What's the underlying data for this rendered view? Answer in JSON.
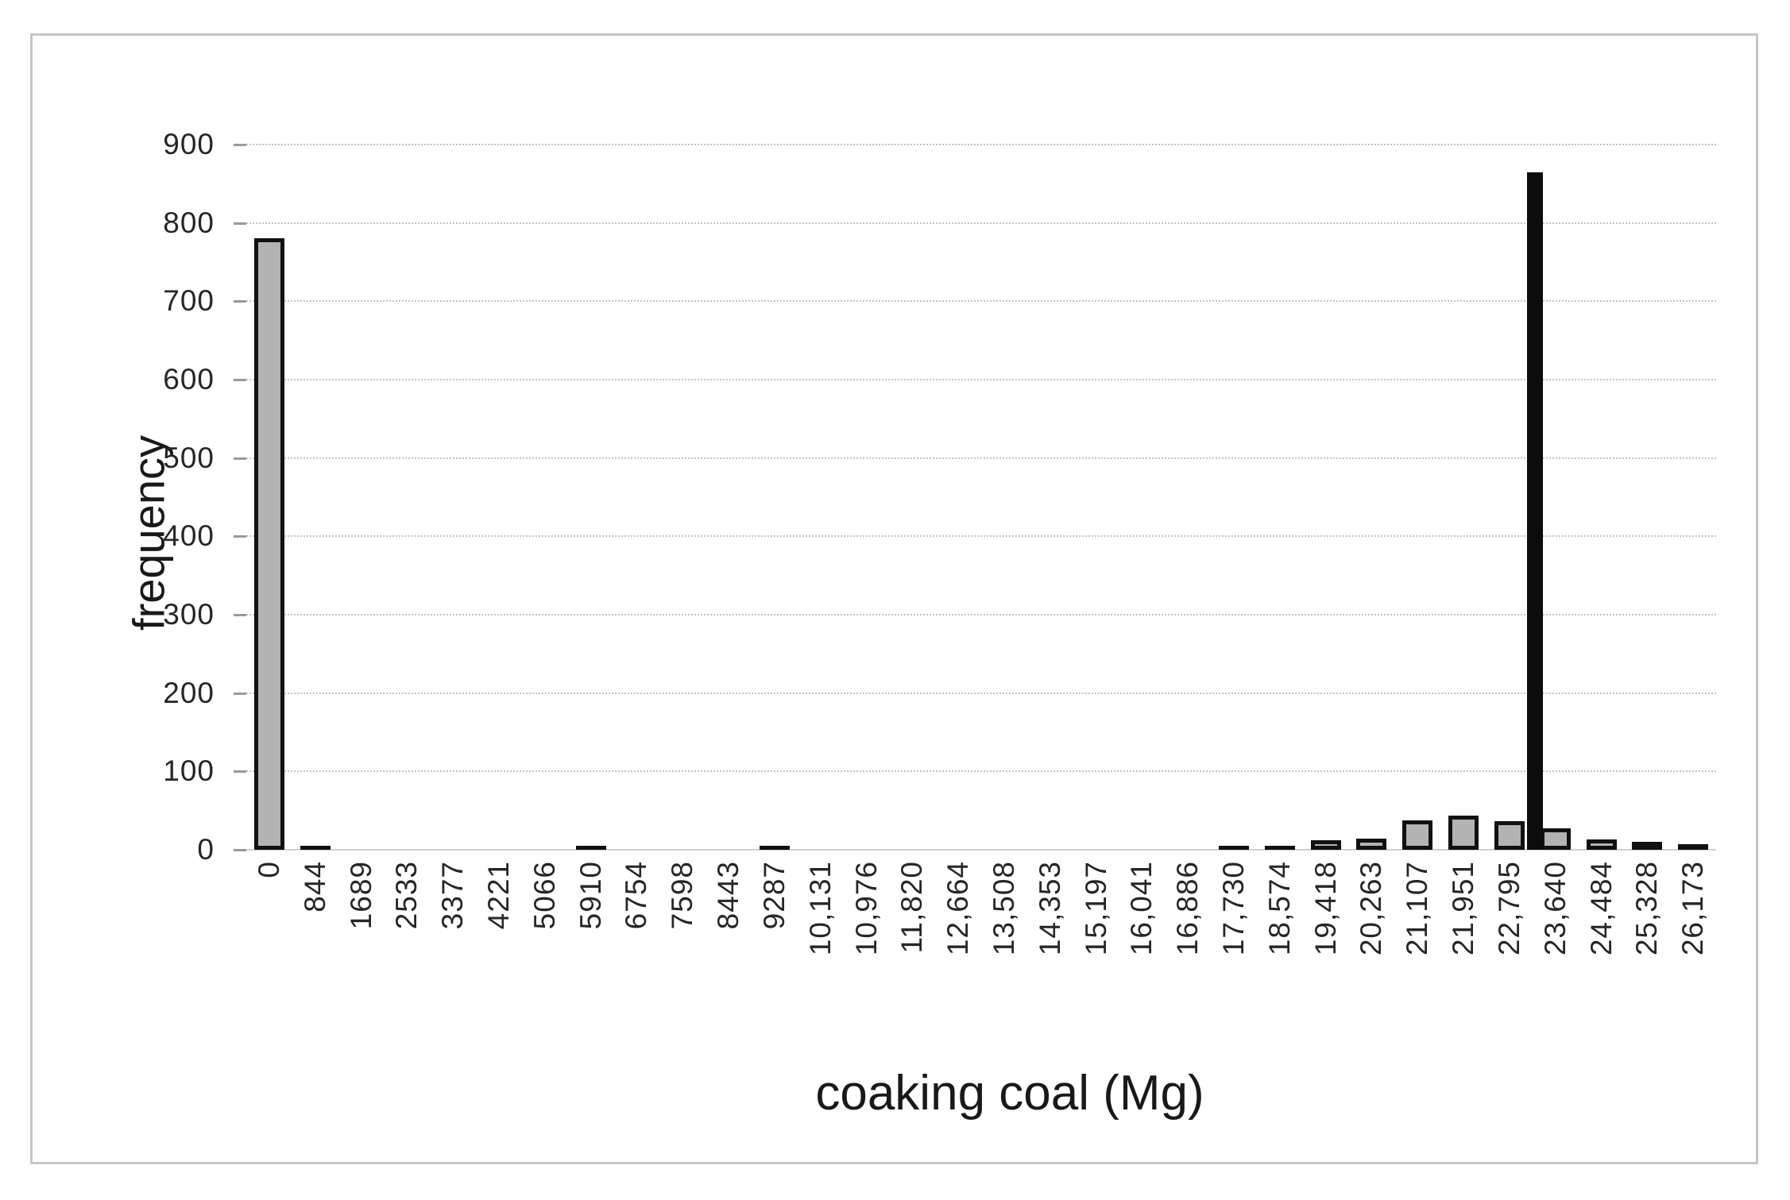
{
  "chart_data": {
    "type": "bar",
    "subtype": "histogram",
    "title": "",
    "xlabel": "coaking coal (Mg)",
    "ylabel": "frequency",
    "ylim": [
      0,
      900
    ],
    "ytick_values": [
      900,
      800,
      700,
      600,
      500,
      400,
      300,
      200,
      100,
      0
    ],
    "x_tick_rotation": -90,
    "grid": {
      "horizontal": true,
      "style": "dotted",
      "color": "#c3c3c3"
    },
    "legend": "none",
    "bar_fill_color": "#b3b3b3",
    "bar_border_color": "#111111",
    "categories": [
      "0",
      "844",
      "1689",
      "2533",
      "3377",
      "4221",
      "5066",
      "5910",
      "6754",
      "7598",
      "8443",
      "9287",
      "10,131",
      "10,976",
      "11,820",
      "12,664",
      "13,508",
      "14,353",
      "15,197",
      "16,041",
      "16,886",
      "17,730",
      "18,574",
      "19,418",
      "20,263",
      "21,107",
      "21,951",
      "22,795",
      "23,640",
      "24,484",
      "25,328",
      "26,173"
    ],
    "values": [
      780,
      5,
      0,
      0,
      0,
      0,
      0,
      5,
      0,
      0,
      0,
      5,
      0,
      0,
      0,
      0,
      0,
      0,
      0,
      0,
      0,
      5,
      5,
      12,
      14,
      38,
      44,
      36,
      27,
      13,
      10,
      7
    ],
    "overlay_marker": {
      "shape": "narrow-vertical-bar",
      "value": 865,
      "position": "boundary between 22,795 and 23,640 bins",
      "color": "#0c0c0c"
    }
  }
}
